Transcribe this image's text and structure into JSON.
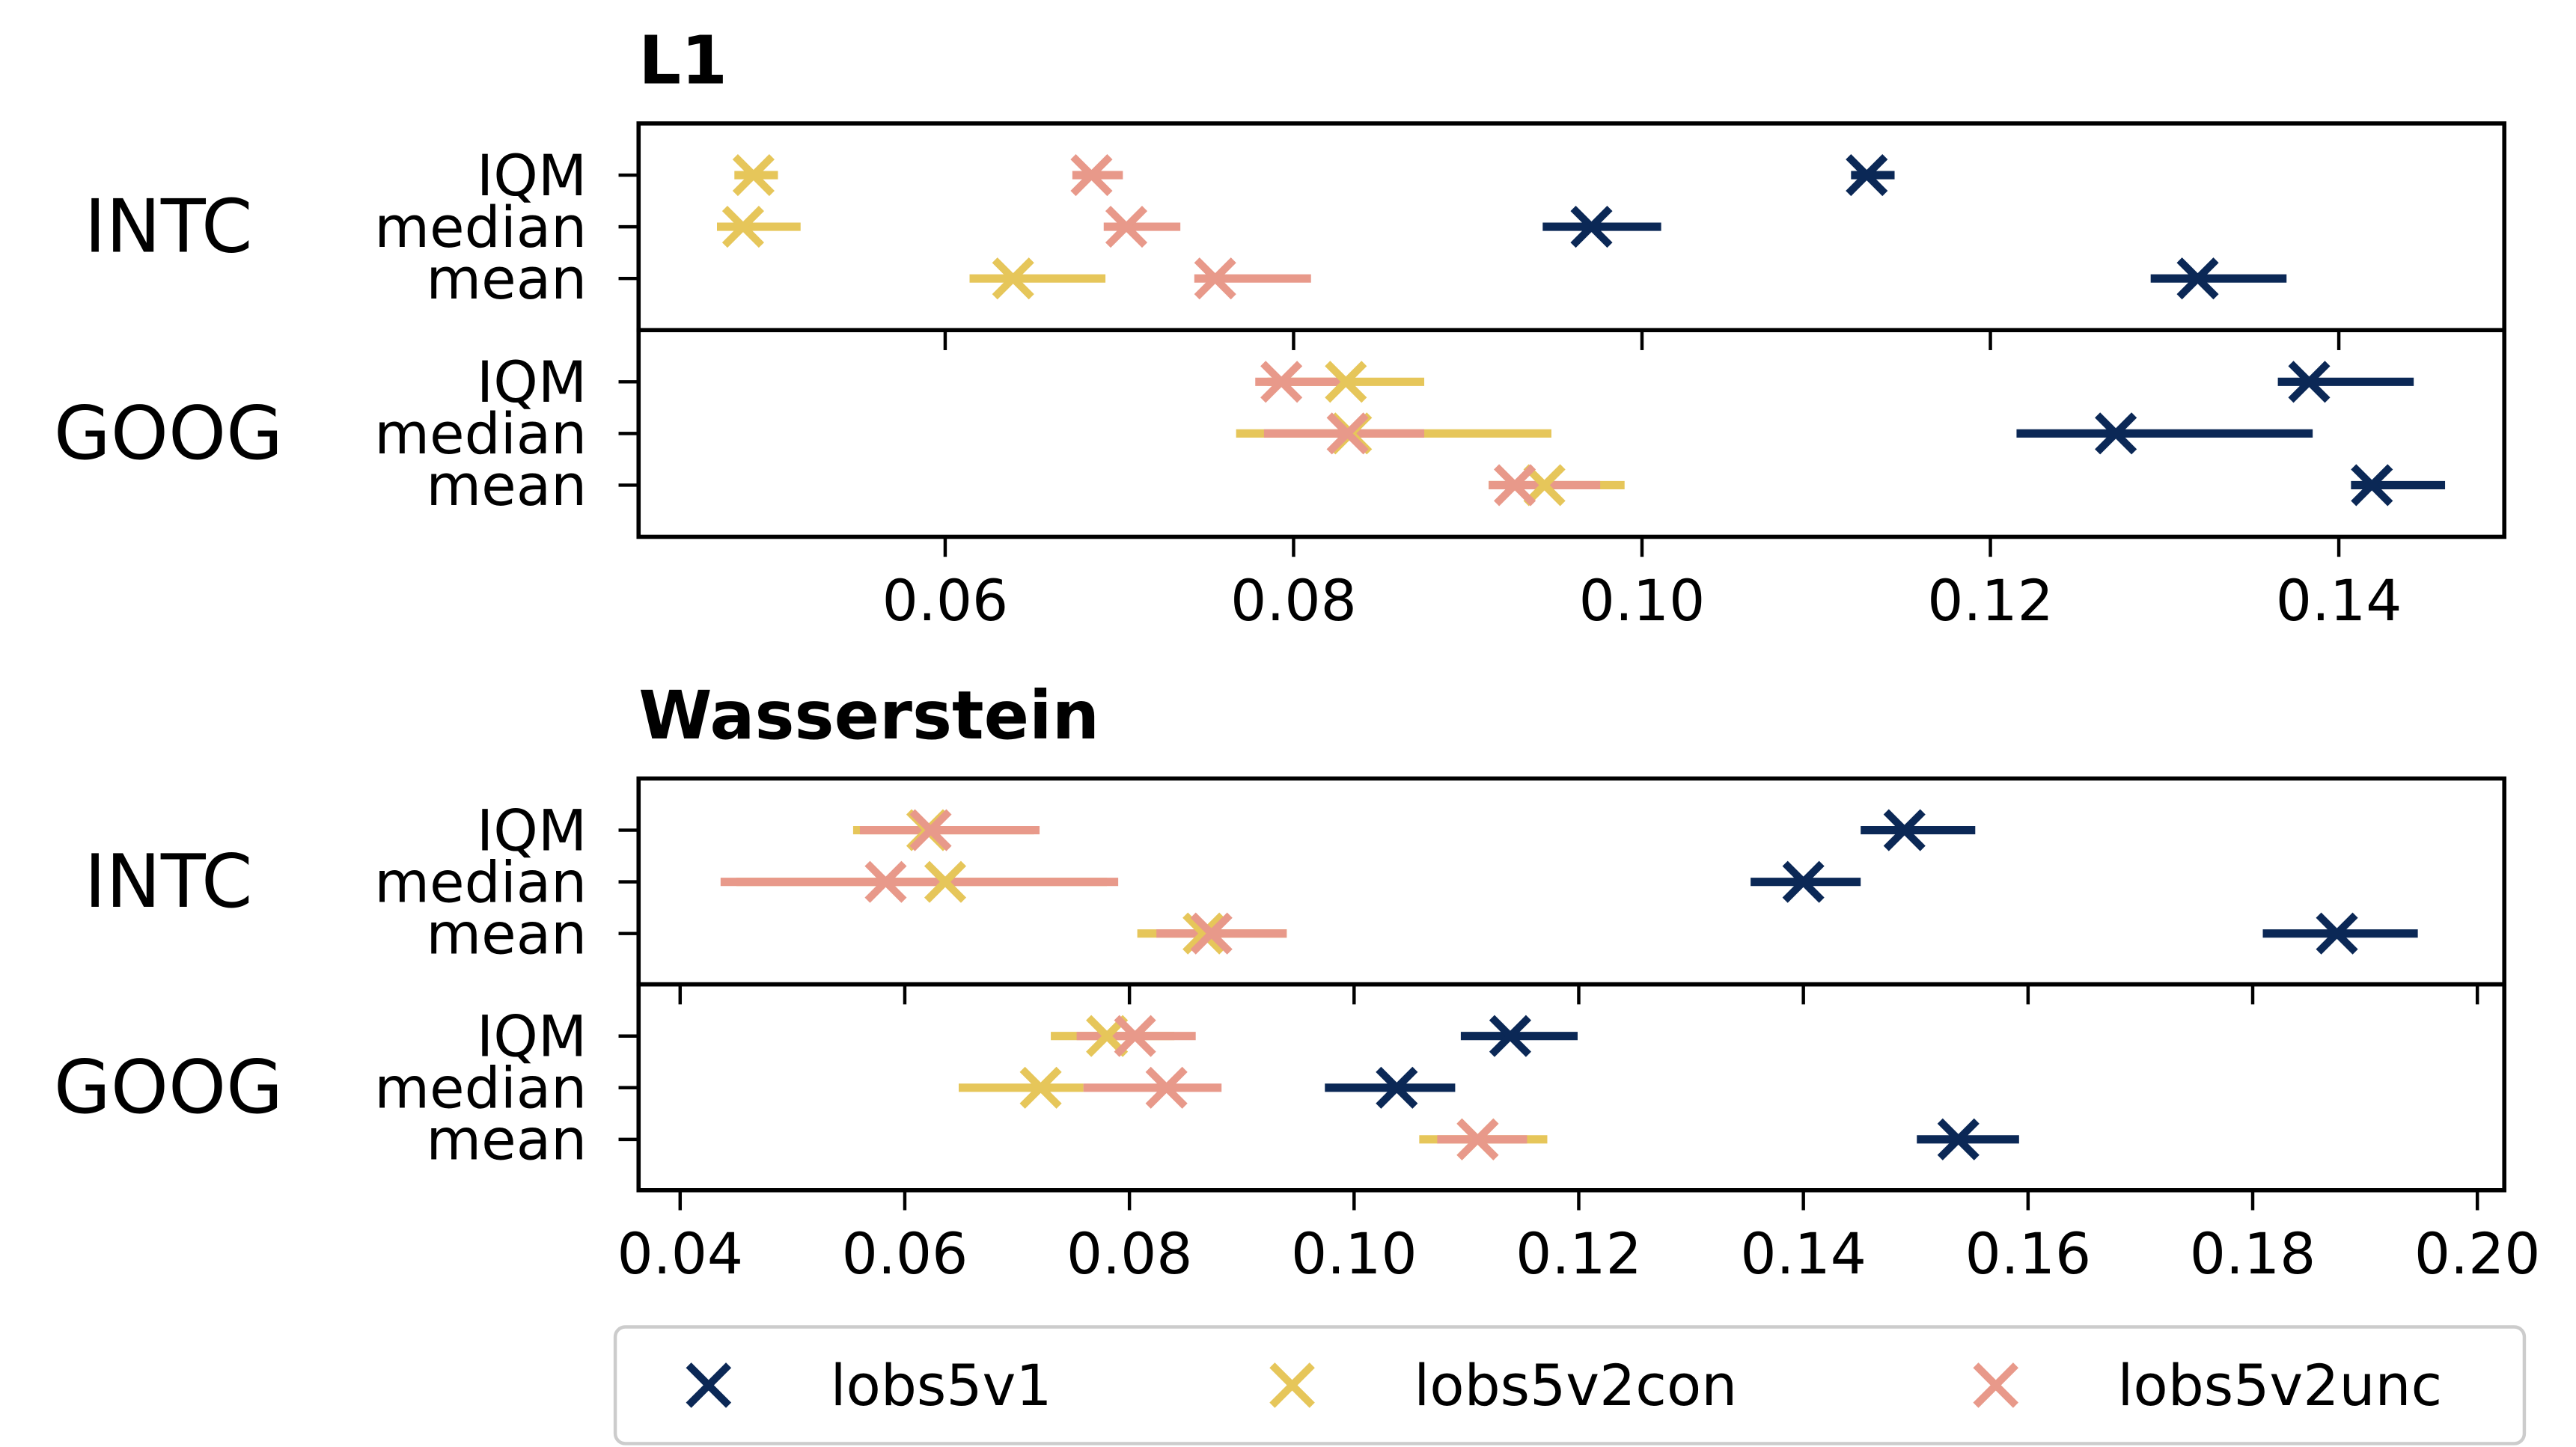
{
  "chart_data": [
    {
      "type": "scatter",
      "title": "L1",
      "xlim": [
        0.0424,
        0.1495
      ],
      "xticks": [
        "0.06",
        "0.08",
        "0.10",
        "0.12",
        "0.14"
      ],
      "xtick_values": [
        0.06,
        0.08,
        0.1,
        0.12,
        0.14
      ],
      "groups": [
        {
          "name": "INTC",
          "rows": [
            {
              "label": "IQM",
              "points": {
                "lobs5v1": {
                  "x": 0.1129,
                  "lo": 0.112,
                  "hi": 0.1145
                },
                "lobs5v2con": {
                  "x": 0.049,
                  "lo": 0.0479,
                  "hi": 0.0504
                },
                "lobs5v2unc": {
                  "x": 0.0684,
                  "lo": 0.0673,
                  "hi": 0.0702
                }
              }
            },
            {
              "label": "median",
              "points": {
                "lobs5v1": {
                  "x": 0.0971,
                  "lo": 0.0943,
                  "hi": 0.1011
                },
                "lobs5v2con": {
                  "x": 0.0484,
                  "lo": 0.0469,
                  "hi": 0.0517
                },
                "lobs5v2unc": {
                  "x": 0.0704,
                  "lo": 0.0691,
                  "hi": 0.0735
                }
              }
            },
            {
              "label": "mean",
              "points": {
                "lobs5v1": {
                  "x": 0.1319,
                  "lo": 0.1292,
                  "hi": 0.137
                },
                "lobs5v2con": {
                  "x": 0.0639,
                  "lo": 0.0614,
                  "hi": 0.0692
                },
                "lobs5v2unc": {
                  "x": 0.0755,
                  "lo": 0.0743,
                  "hi": 0.081
                }
              }
            }
          ]
        },
        {
          "name": "GOOG",
          "rows": [
            {
              "label": "IQM",
              "points": {
                "lobs5v1": {
                  "x": 0.1383,
                  "lo": 0.1365,
                  "hi": 0.1443
                },
                "lobs5v2con": {
                  "x": 0.083,
                  "lo": 0.0785,
                  "hi": 0.0875
                },
                "lobs5v2unc": {
                  "x": 0.0793,
                  "lo": 0.0778,
                  "hi": 0.0831
                }
              }
            },
            {
              "label": "median",
              "points": {
                "lobs5v1": {
                  "x": 0.1272,
                  "lo": 0.1215,
                  "hi": 0.1385
                },
                "lobs5v2con": {
                  "x": 0.0833,
                  "lo": 0.0767,
                  "hi": 0.0948
                },
                "lobs5v2unc": {
                  "x": 0.0831,
                  "lo": 0.0783,
                  "hi": 0.0875
                }
              }
            },
            {
              "label": "mean",
              "points": {
                "lobs5v1": {
                  "x": 0.1419,
                  "lo": 0.1407,
                  "hi": 0.1461
                },
                "lobs5v2con": {
                  "x": 0.0944,
                  "lo": 0.0912,
                  "hi": 0.099
                },
                "lobs5v2unc": {
                  "x": 0.0927,
                  "lo": 0.0912,
                  "hi": 0.0976
                }
              }
            }
          ]
        }
      ]
    },
    {
      "type": "scatter",
      "title": "Wasserstein",
      "xlim": [
        0.0363,
        0.2024
      ],
      "xticks": [
        "0.04",
        "0.06",
        "0.08",
        "0.10",
        "0.12",
        "0.14",
        "0.16",
        "0.18",
        "0.20"
      ],
      "xtick_values": [
        0.04,
        0.06,
        0.08,
        0.1,
        0.12,
        0.14,
        0.16,
        0.18,
        0.2
      ],
      "groups": [
        {
          "name": "INTC",
          "rows": [
            {
              "label": "IQM",
              "points": {
                "lobs5v1": {
                  "x": 0.149,
                  "lo": 0.1451,
                  "hi": 0.1553
                },
                "lobs5v2con": {
                  "x": 0.062,
                  "lo": 0.0554,
                  "hi": 0.0715
                },
                "lobs5v2unc": {
                  "x": 0.0623,
                  "lo": 0.056,
                  "hi": 0.072
                }
              }
            },
            {
              "label": "median",
              "points": {
                "lobs5v1": {
                  "x": 0.14,
                  "lo": 0.1353,
                  "hi": 0.1451
                },
                "lobs5v2con": {
                  "x": 0.0636,
                  "lo": 0.045,
                  "hi": 0.078
                },
                "lobs5v2unc": {
                  "x": 0.0583,
                  "lo": 0.0436,
                  "hi": 0.079
                }
              }
            },
            {
              "label": "mean",
              "points": {
                "lobs5v1": {
                  "x": 0.1875,
                  "lo": 0.1809,
                  "hi": 0.1947
                },
                "lobs5v2con": {
                  "x": 0.0866,
                  "lo": 0.0807,
                  "hi": 0.094
                },
                "lobs5v2unc": {
                  "x": 0.0873,
                  "lo": 0.0824,
                  "hi": 0.094
                }
              }
            }
          ]
        },
        {
          "name": "GOOG",
          "rows": [
            {
              "label": "IQM",
              "points": {
                "lobs5v1": {
                  "x": 0.1139,
                  "lo": 0.1095,
                  "hi": 0.1199
                },
                "lobs5v2con": {
                  "x": 0.078,
                  "lo": 0.073,
                  "hi": 0.084
                },
                "lobs5v2unc": {
                  "x": 0.0805,
                  "lo": 0.0753,
                  "hi": 0.0859
                }
              }
            },
            {
              "label": "median",
              "points": {
                "lobs5v1": {
                  "x": 0.1038,
                  "lo": 0.0974,
                  "hi": 0.109
                },
                "lobs5v2con": {
                  "x": 0.0721,
                  "lo": 0.0648,
                  "hi": 0.0759
                },
                "lobs5v2unc": {
                  "x": 0.0833,
                  "lo": 0.0759,
                  "hi": 0.0882
                }
              }
            },
            {
              "label": "mean",
              "points": {
                "lobs5v1": {
                  "x": 0.1538,
                  "lo": 0.1501,
                  "hi": 0.1592
                },
                "lobs5v2con": {
                  "x": 0.111,
                  "lo": 0.1058,
                  "hi": 0.1172
                },
                "lobs5v2unc": {
                  "x": 0.111,
                  "lo": 0.1074,
                  "hi": 0.1154
                }
              }
            }
          ]
        }
      ]
    }
  ],
  "legend": {
    "placement": "bottom",
    "entries": [
      {
        "name": "lobs5v1",
        "color": "#0b2856"
      },
      {
        "name": "lobs5v2con",
        "color": "#e6c65a"
      },
      {
        "name": "lobs5v2unc",
        "color": "#e8998a"
      }
    ]
  }
}
